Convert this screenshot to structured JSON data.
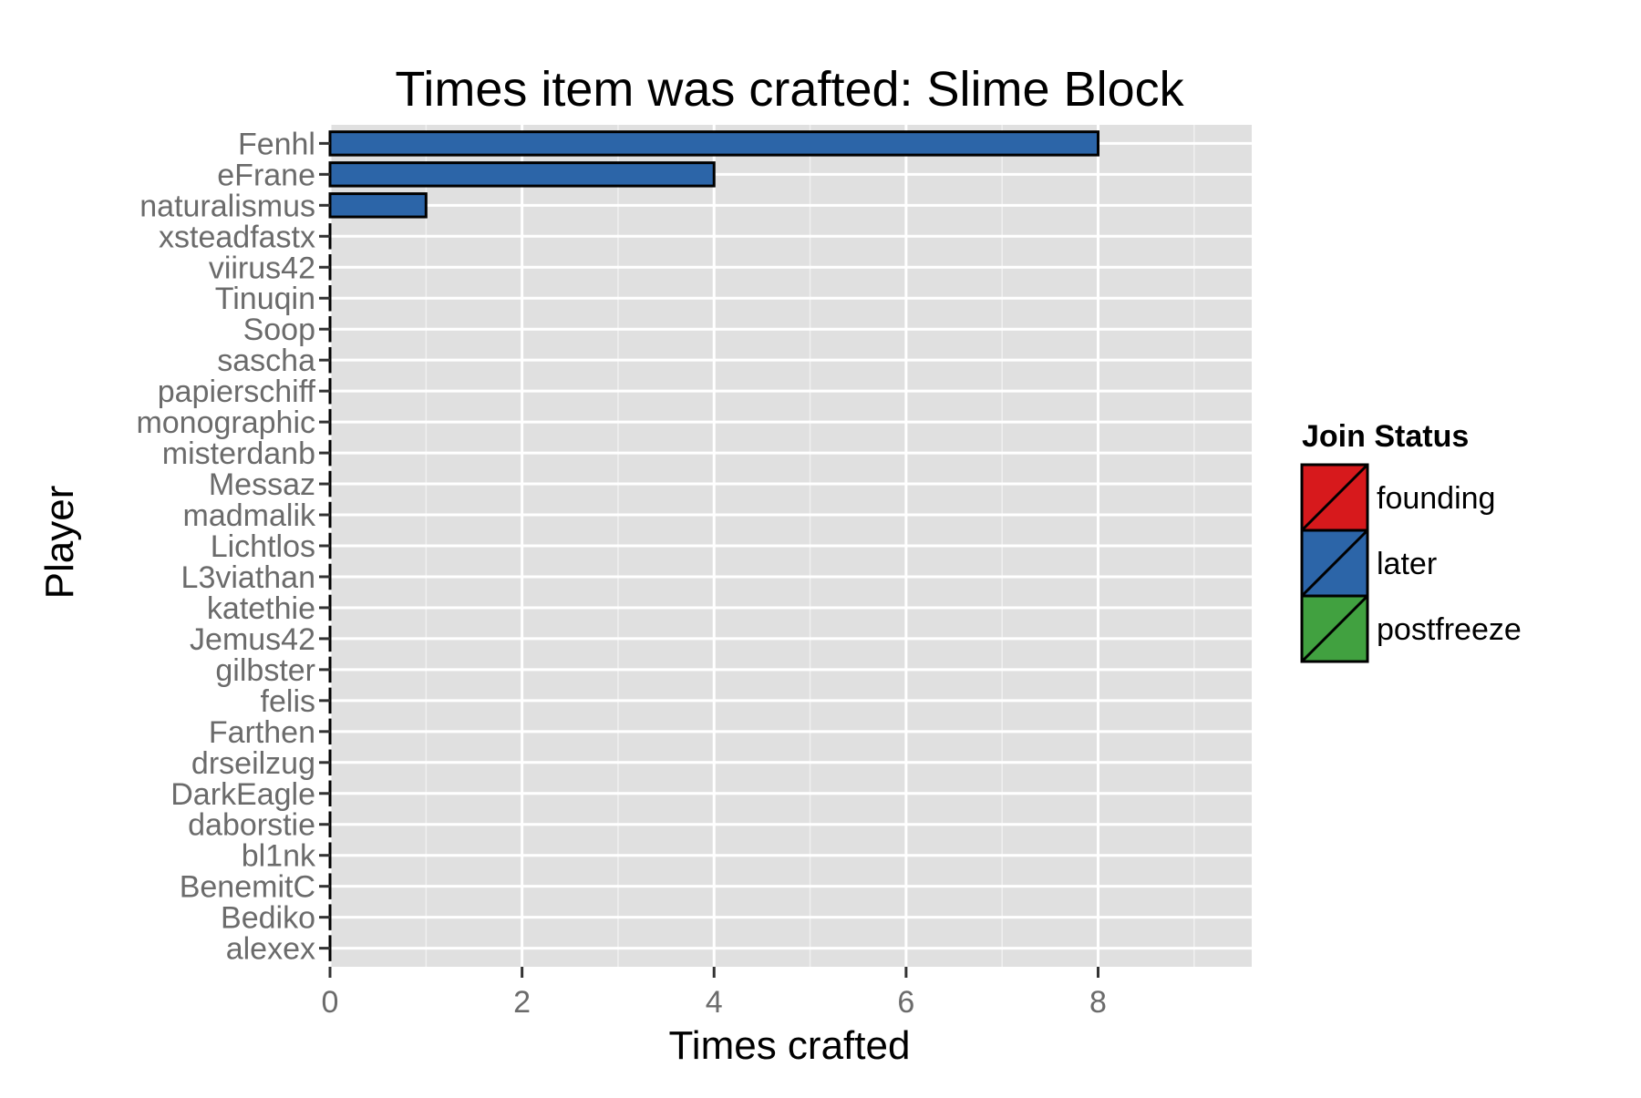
{
  "chart_data": {
    "type": "bar",
    "orientation": "horizontal",
    "title": "Times item was crafted: Slime Block",
    "xlabel": "Times crafted",
    "ylabel": "Player",
    "xlim": [
      0,
      9.6
    ],
    "x_ticks": [
      0,
      2,
      4,
      6,
      8
    ],
    "grid": true,
    "legend_position": "right",
    "legend_title": "Join Status",
    "legend": [
      {
        "label": "founding",
        "color": "#d7191c"
      },
      {
        "label": "later",
        "color": "#2c65a8"
      },
      {
        "label": "postfreeze",
        "color": "#41a140"
      }
    ],
    "categories": [
      "Fenhl",
      "eFrane",
      "naturalismus",
      "xsteadfastx",
      "viirus42",
      "Tinuqin",
      "Soop",
      "sascha",
      "papierschiff",
      "monographic",
      "misterdanb",
      "Messaz",
      "madmalik",
      "Lichtlos",
      "L3viathan",
      "katethie",
      "Jemus42",
      "gilbster",
      "felis",
      "Farthen",
      "drseilzug",
      "DarkEagle",
      "daborstie",
      "bl1nk",
      "BenemitC",
      "Bediko",
      "alexex"
    ],
    "values": [
      8,
      4,
      1,
      0,
      0,
      0,
      0,
      0,
      0,
      0,
      0,
      0,
      0,
      0,
      0,
      0,
      0,
      0,
      0,
      0,
      0,
      0,
      0,
      0,
      0,
      0,
      0
    ],
    "status": [
      "later",
      "later",
      "later",
      "later",
      "later",
      "later",
      "later",
      "later",
      "later",
      "later",
      "later",
      "later",
      "later",
      "later",
      "later",
      "later",
      "later",
      "later",
      "later",
      "later",
      "later",
      "later",
      "later",
      "later",
      "later",
      "later",
      "later"
    ]
  }
}
